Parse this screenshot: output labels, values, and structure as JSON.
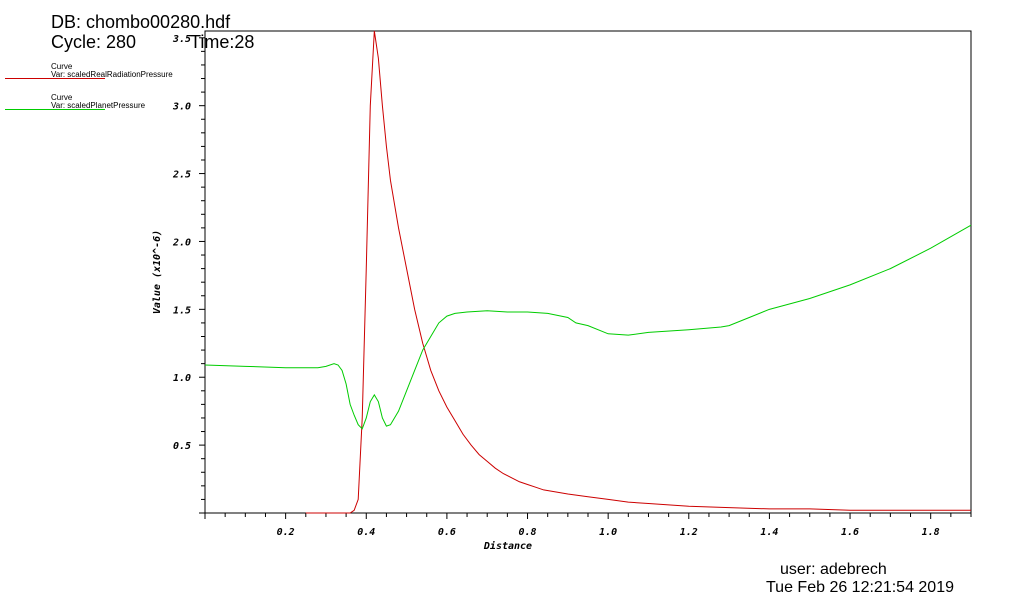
{
  "header": {
    "db": "DB: chombo00280.hdf",
    "cycle": "Cycle: 280",
    "time": "Time:28"
  },
  "legend": [
    {
      "label1": "Curve",
      "label2": "Var: scaledRealRadiationPressure",
      "color": "#cc0000"
    },
    {
      "label1": "Curve",
      "label2": "Var: scaledPlanetPressure",
      "color": "#00cc00"
    }
  ],
  "footer": {
    "user": "user: adebrech",
    "date": "Tue Feb 26 12:21:54 2019"
  },
  "chart_data": {
    "type": "line",
    "xlabel": "Distance",
    "ylabel": "Value (x10^-6)",
    "xlim": [
      0.0,
      1.9
    ],
    "ylim": [
      0.0,
      3.55
    ],
    "xticks": [
      0.2,
      0.4,
      0.6,
      0.8,
      1.0,
      1.2,
      1.4,
      1.6,
      1.8
    ],
    "yticks": [
      0.5,
      1.0,
      1.5,
      2.0,
      2.5,
      3.0
    ],
    "xtick_labels": [
      "0.2",
      "0.4",
      "0.6",
      "0.8",
      "1.0",
      "1.2",
      "1.4",
      "1.6",
      "1.8"
    ],
    "ytick_labels": [
      "0.5",
      "1.0",
      "1.5",
      "2.0",
      "2.5",
      "3.0"
    ],
    "top_label": "3.5",
    "series": [
      {
        "name": "scaledRealRadiationPressure",
        "color": "#cc0000",
        "points": [
          [
            0.25,
            0.0
          ],
          [
            0.3,
            0.0
          ],
          [
            0.34,
            0.0
          ],
          [
            0.36,
            0.0
          ],
          [
            0.37,
            0.02
          ],
          [
            0.38,
            0.1
          ],
          [
            0.39,
            0.7
          ],
          [
            0.4,
            1.8
          ],
          [
            0.41,
            3.0
          ],
          [
            0.42,
            3.55
          ],
          [
            0.43,
            3.35
          ],
          [
            0.44,
            3.0
          ],
          [
            0.45,
            2.7
          ],
          [
            0.46,
            2.45
          ],
          [
            0.48,
            2.1
          ],
          [
            0.5,
            1.8
          ],
          [
            0.52,
            1.5
          ],
          [
            0.54,
            1.25
          ],
          [
            0.56,
            1.05
          ],
          [
            0.58,
            0.9
          ],
          [
            0.6,
            0.78
          ],
          [
            0.62,
            0.68
          ],
          [
            0.64,
            0.58
          ],
          [
            0.66,
            0.5
          ],
          [
            0.68,
            0.43
          ],
          [
            0.7,
            0.38
          ],
          [
            0.72,
            0.33
          ],
          [
            0.74,
            0.29
          ],
          [
            0.76,
            0.26
          ],
          [
            0.78,
            0.23
          ],
          [
            0.8,
            0.21
          ],
          [
            0.82,
            0.19
          ],
          [
            0.84,
            0.17
          ],
          [
            0.86,
            0.16
          ],
          [
            0.88,
            0.15
          ],
          [
            0.9,
            0.14
          ],
          [
            0.95,
            0.12
          ],
          [
            1.0,
            0.1
          ],
          [
            1.05,
            0.08
          ],
          [
            1.1,
            0.07
          ],
          [
            1.2,
            0.05
          ],
          [
            1.3,
            0.04
          ],
          [
            1.4,
            0.03
          ],
          [
            1.5,
            0.03
          ],
          [
            1.6,
            0.02
          ],
          [
            1.7,
            0.02
          ],
          [
            1.8,
            0.02
          ],
          [
            1.9,
            0.02
          ]
        ]
      },
      {
        "name": "scaledPlanetPressure",
        "color": "#00cc00",
        "points": [
          [
            0.0,
            1.09
          ],
          [
            0.1,
            1.08
          ],
          [
            0.2,
            1.07
          ],
          [
            0.28,
            1.07
          ],
          [
            0.3,
            1.08
          ],
          [
            0.32,
            1.1
          ],
          [
            0.33,
            1.09
          ],
          [
            0.34,
            1.05
          ],
          [
            0.35,
            0.95
          ],
          [
            0.36,
            0.8
          ],
          [
            0.37,
            0.72
          ],
          [
            0.38,
            0.65
          ],
          [
            0.39,
            0.62
          ],
          [
            0.4,
            0.7
          ],
          [
            0.41,
            0.82
          ],
          [
            0.42,
            0.87
          ],
          [
            0.43,
            0.82
          ],
          [
            0.44,
            0.7
          ],
          [
            0.45,
            0.64
          ],
          [
            0.46,
            0.65
          ],
          [
            0.48,
            0.75
          ],
          [
            0.5,
            0.9
          ],
          [
            0.52,
            1.05
          ],
          [
            0.54,
            1.2
          ],
          [
            0.56,
            1.3
          ],
          [
            0.58,
            1.4
          ],
          [
            0.6,
            1.45
          ],
          [
            0.62,
            1.47
          ],
          [
            0.65,
            1.48
          ],
          [
            0.7,
            1.49
          ],
          [
            0.75,
            1.48
          ],
          [
            0.8,
            1.48
          ],
          [
            0.85,
            1.47
          ],
          [
            0.9,
            1.44
          ],
          [
            0.92,
            1.4
          ],
          [
            0.95,
            1.38
          ],
          [
            1.0,
            1.32
          ],
          [
            1.05,
            1.31
          ],
          [
            1.1,
            1.33
          ],
          [
            1.2,
            1.35
          ],
          [
            1.28,
            1.37
          ],
          [
            1.3,
            1.38
          ],
          [
            1.35,
            1.44
          ],
          [
            1.4,
            1.5
          ],
          [
            1.5,
            1.58
          ],
          [
            1.6,
            1.68
          ],
          [
            1.7,
            1.8
          ],
          [
            1.8,
            1.95
          ],
          [
            1.9,
            2.12
          ]
        ]
      }
    ]
  }
}
